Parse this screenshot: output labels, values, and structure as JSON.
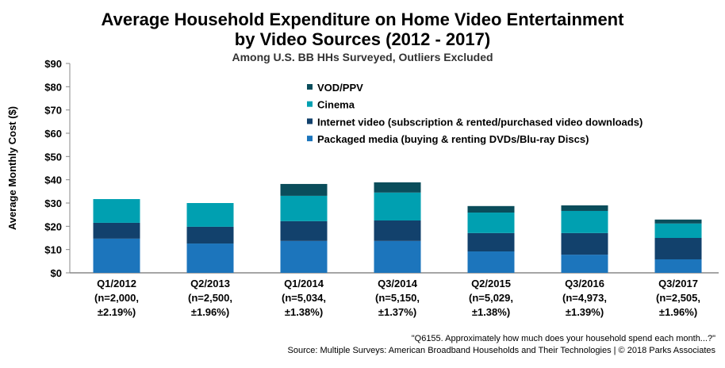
{
  "chart_data": {
    "type": "bar",
    "stacked": true,
    "title": "Average Household Expenditure on Home Video Entertainment",
    "title_line2": "by Video Sources (2012 - 2017)",
    "subtitle": "Among U.S. BB HHs Surveyed, Outliers Excluded",
    "ylabel": "Average Monthly Cost ($)",
    "xlabel": "",
    "ylim": [
      0,
      90
    ],
    "yticks": [
      "$0",
      "$10",
      "$20",
      "$30",
      "$40",
      "$50",
      "$60",
      "$70",
      "$80",
      "$90"
    ],
    "categories": [
      [
        "Q1/2012",
        "(n=2,000,",
        "±2.19%)"
      ],
      [
        "Q2/2013",
        "(n=2,500,",
        "±1.96%)"
      ],
      [
        "Q1/2014",
        "(n=5,034,",
        "±1.38%)"
      ],
      [
        "Q3/2014",
        "(n=5,150,",
        "±1.37%)"
      ],
      [
        "Q2/2015",
        "(n=5,029,",
        "±1.38%)"
      ],
      [
        "Q3/2016",
        "(n=4,973,",
        "±1.39%)"
      ],
      [
        "Q3/2017",
        "(n=2,505,",
        "±1.96%)"
      ]
    ],
    "series": [
      {
        "name": "Packaged media (buying & renting DVDs/Blu-ray Discs)",
        "color": "#1c75bc",
        "values": [
          14.7,
          12.6,
          13.7,
          13.7,
          9.2,
          7.8,
          5.8
        ]
      },
      {
        "name": "Internet video (subscription & rented/purchased video downloads)",
        "color": "#12416c",
        "values": [
          6.8,
          7.2,
          8.5,
          8.8,
          7.9,
          9.3,
          9.2
        ]
      },
      {
        "name": "Cinema",
        "color": "#00a0b1",
        "values": [
          10.2,
          10.2,
          10.9,
          12.0,
          8.8,
          9.5,
          6.2
        ]
      },
      {
        "name": "VOD/PPV",
        "color": "#0a4d5b",
        "values": [
          0,
          0,
          5.1,
          4.4,
          2.8,
          2.4,
          1.7
        ]
      }
    ],
    "legend_position": "top-center",
    "grid": false
  },
  "footnote": "\"Q6155. Approximately how much does your household spend each month...?\"",
  "source": "Source:  Multiple Surveys: American Broadband Households and Their Technologies  | © 2018 Parks Associates"
}
